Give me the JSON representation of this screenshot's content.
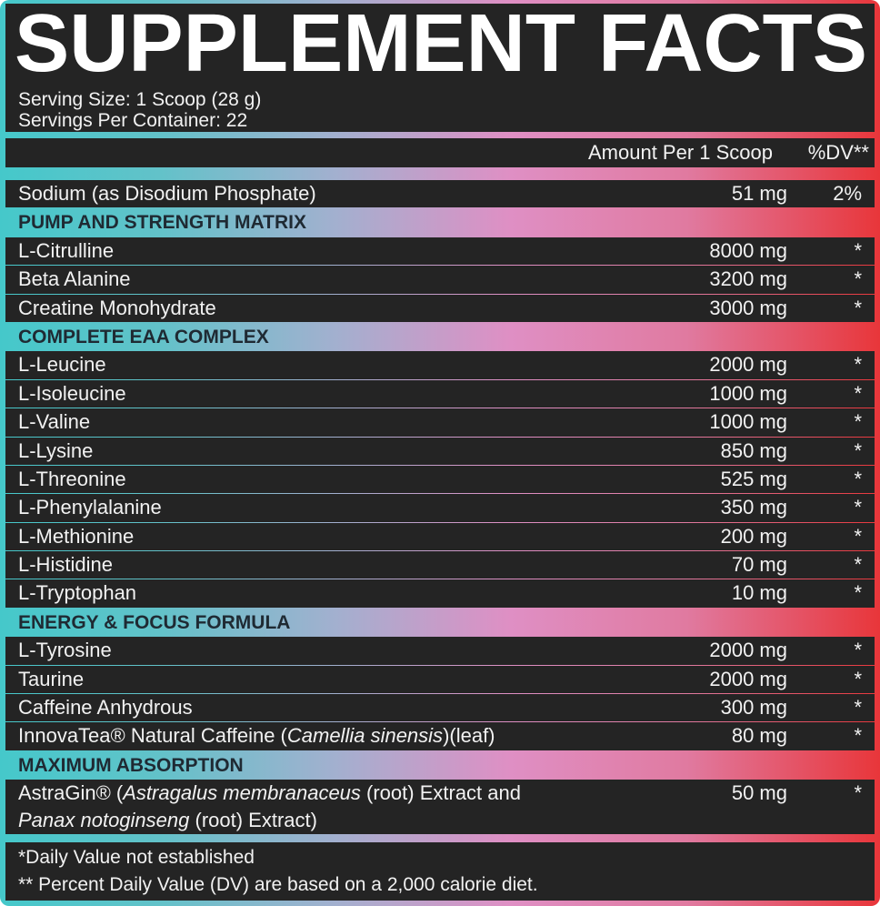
{
  "title": "SUPPLEMENT FACTS",
  "serving_size": "Serving Size: 1 Scoop (28 g)",
  "servings_per_container": "Servings Per Container: 22",
  "header": {
    "amount": "Amount Per 1 Scoop",
    "dv": "%DV**"
  },
  "sodium": {
    "name": "Sodium (as Disodium Phosphate)",
    "amount": "51 mg",
    "dv": "2%"
  },
  "sections": [
    {
      "title": "PUMP AND STRENGTH MATRIX",
      "items": [
        {
          "name": "L-Citrulline",
          "amount": "8000 mg",
          "dv": "*"
        },
        {
          "name": "Beta Alanine",
          "amount": "3200 mg",
          "dv": "*"
        },
        {
          "name": "Creatine Monohydrate",
          "amount": "3000 mg",
          "dv": "*"
        }
      ]
    },
    {
      "title": "COMPLETE EAA COMPLEX",
      "items": [
        {
          "name": "L-Leucine",
          "amount": "2000 mg",
          "dv": "*"
        },
        {
          "name": "L-Isoleucine",
          "amount": "1000 mg",
          "dv": "*"
        },
        {
          "name": "L-Valine",
          "amount": "1000 mg",
          "dv": "*"
        },
        {
          "name": "L-Lysine",
          "amount": "850 mg",
          "dv": "*"
        },
        {
          "name": "L-Threonine",
          "amount": "525 mg",
          "dv": "*"
        },
        {
          "name": "L-Phenylalanine",
          "amount": "350 mg",
          "dv": "*"
        },
        {
          "name": "L-Methionine",
          "amount": "200 mg",
          "dv": "*"
        },
        {
          "name": "L-Histidine",
          "amount": "70 mg",
          "dv": "*"
        },
        {
          "name": "L-Tryptophan",
          "amount": "10 mg",
          "dv": "*"
        }
      ]
    },
    {
      "title": "ENERGY & FOCUS FORMULA",
      "items": [
        {
          "name": "L-Tyrosine",
          "amount": "2000 mg",
          "dv": "*"
        },
        {
          "name": "Taurine",
          "amount": "2000 mg",
          "dv": "*"
        },
        {
          "name": "Caffeine Anhydrous",
          "amount": "300 mg",
          "dv": "*"
        }
      ]
    }
  ],
  "innovatea": {
    "pre": "InnovaTea® Natural Caffeine (",
    "ital": "Camellia sinensis",
    "post": ")(leaf)",
    "amount": "80 mg",
    "dv": "*"
  },
  "absorption": {
    "title": "MAXIMUM ABSORPTION",
    "pre": "AstraGin® (",
    "ital1": "Astragalus membranaceus",
    "mid": " (root) Extract and",
    "ital2": "Panax notoginseng",
    "post": " (root) Extract)",
    "amount": "50 mg",
    "dv": "*"
  },
  "footnotes": [
    "*Daily Value not established",
    "** Percent Daily Value (DV) are based on a 2,000 calorie diet."
  ],
  "colors": {
    "gradient": [
      "#45c8ca",
      "#a2b0cf",
      "#df8fc4",
      "#e8363a"
    ],
    "panel": "#242424",
    "section_text": "#1f2a33"
  }
}
